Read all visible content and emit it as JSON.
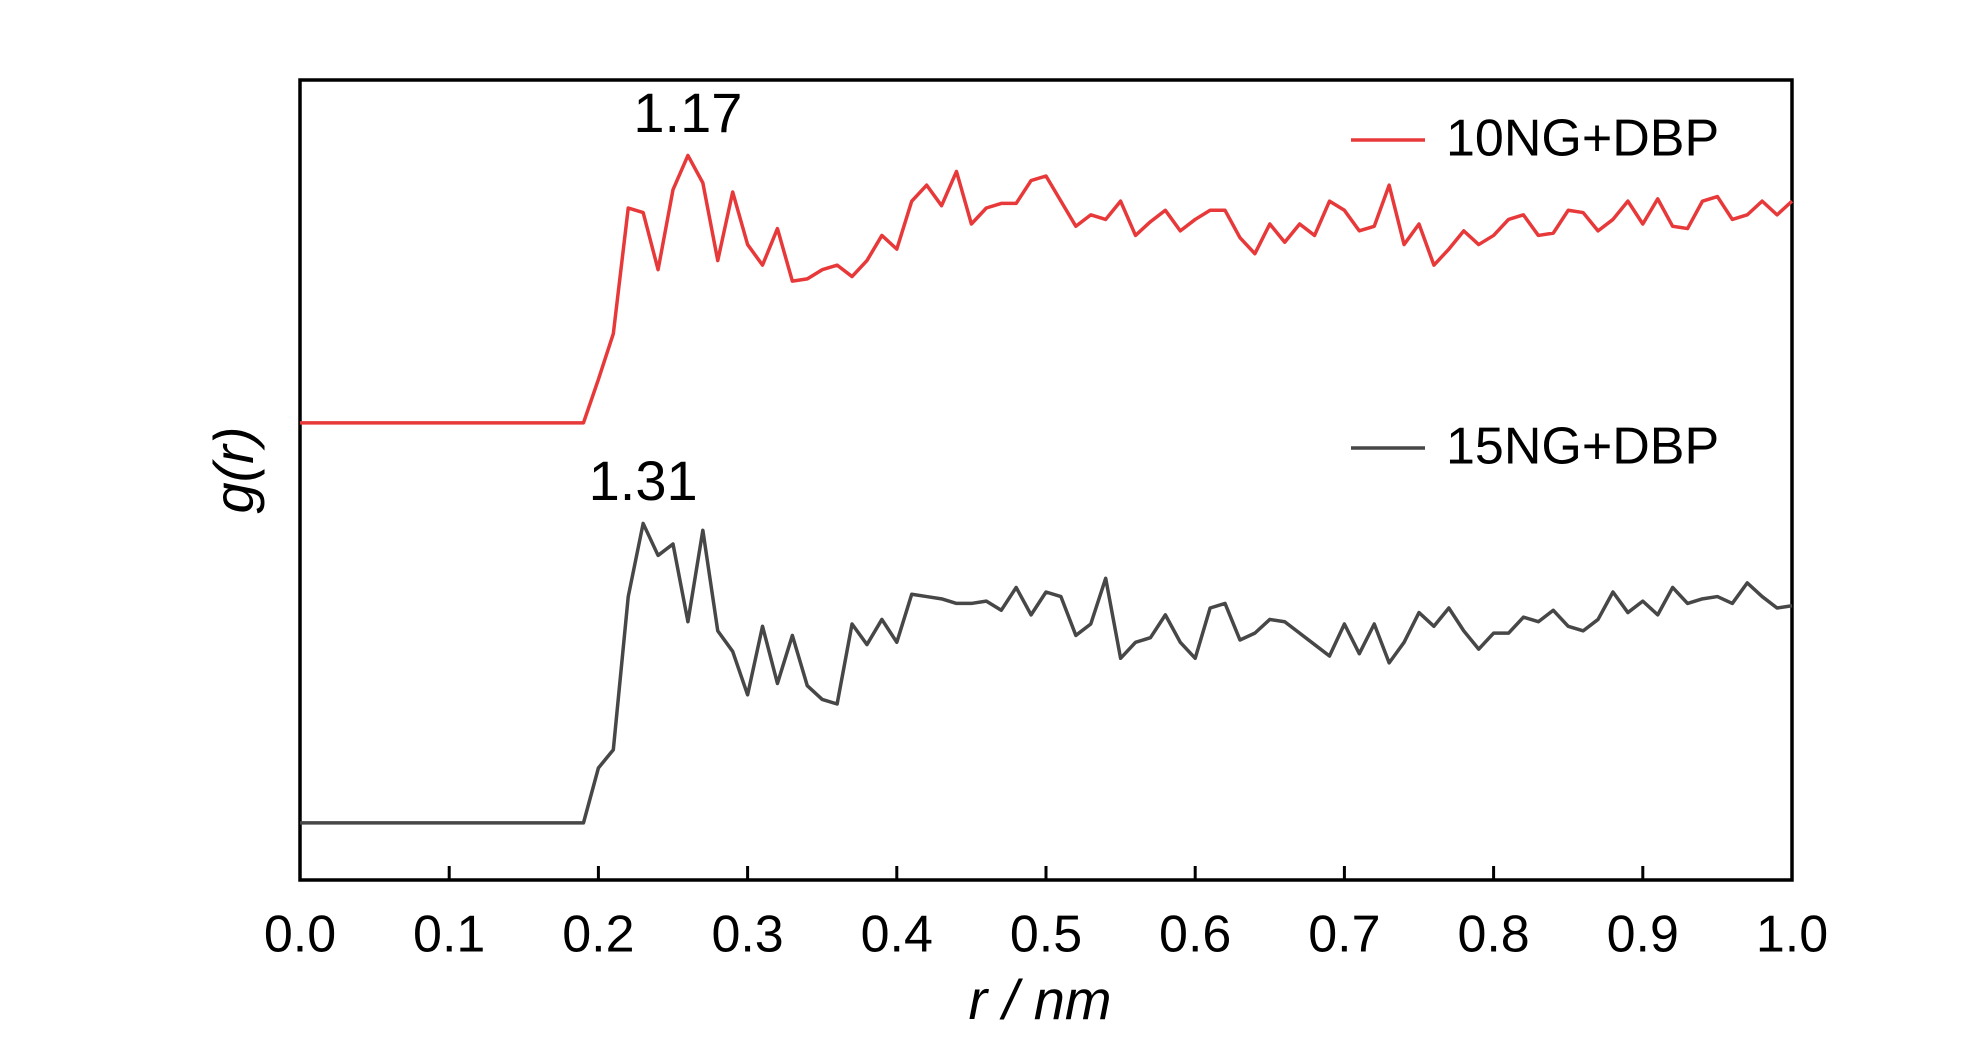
{
  "chart_data": {
    "type": "line",
    "xlabel": "r / nm",
    "ylabel": "g(r)",
    "annotations": [
      "1.17",
      "1.31"
    ],
    "legend": "upper right",
    "grid": false,
    "x": [
      0,
      0.19,
      0.2,
      0.21,
      0.22,
      0.23,
      0.24,
      0.25,
      0.26,
      0.27,
      0.28,
      0.29,
      0.3,
      0.31,
      0.32,
      0.33,
      0.34,
      0.35,
      0.36,
      0.37,
      0.38,
      0.39,
      0.4,
      0.41,
      0.42,
      0.43,
      0.44,
      0.45,
      0.46,
      0.47,
      0.48,
      0.49,
      0.5,
      0.51,
      0.52,
      0.53,
      0.54,
      0.55,
      0.56,
      0.57,
      0.58,
      0.59,
      0.6,
      0.61,
      0.62,
      0.63,
      0.64,
      0.65,
      0.66,
      0.67,
      0.68,
      0.69,
      0.7,
      0.71,
      0.72,
      0.73,
      0.74,
      0.75,
      0.76,
      0.77,
      0.78,
      0.79,
      0.8,
      0.81,
      0.82,
      0.83,
      0.84,
      0.85,
      0.86,
      0.87,
      0.88,
      0.89,
      0.9,
      0.91,
      0.92,
      0.93,
      0.94,
      0.95,
      0.96,
      0.97,
      0.98,
      0.99,
      1.0
    ],
    "series": [
      {
        "name": "10NG+DBP",
        "color": "#e8393a",
        "values": [
          1.75,
          1.75,
          1.94,
          2.14,
          2.69,
          2.67,
          2.42,
          2.77,
          2.92,
          2.8,
          2.46,
          2.76,
          2.53,
          2.44,
          2.6,
          2.37,
          2.38,
          2.42,
          2.44,
          2.39,
          2.46,
          2.57,
          2.51,
          2.72,
          2.79,
          2.7,
          2.85,
          2.62,
          2.69,
          2.71,
          2.71,
          2.81,
          2.83,
          2.72,
          2.61,
          2.66,
          2.64,
          2.72,
          2.57,
          2.63,
          2.68,
          2.59,
          2.64,
          2.68,
          2.68,
          2.56,
          2.49,
          2.62,
          2.54,
          2.62,
          2.57,
          2.72,
          2.68,
          2.59,
          2.61,
          2.79,
          2.53,
          2.62,
          2.44,
          2.51,
          2.59,
          2.53,
          2.57,
          2.64,
          2.66,
          2.57,
          2.58,
          2.68,
          2.67,
          2.59,
          2.64,
          2.72,
          2.62,
          2.73,
          2.61,
          2.6,
          2.72,
          2.74,
          2.64,
          2.66,
          2.72,
          2.66,
          2.72
        ]
      },
      {
        "name": "15NG+DBP",
        "color": "#474747",
        "values": [
          0,
          0,
          0.24,
          0.32,
          0.99,
          1.31,
          1.17,
          1.22,
          0.88,
          1.28,
          0.84,
          0.75,
          0.56,
          0.86,
          0.61,
          0.82,
          0.6,
          0.54,
          0.52,
          0.87,
          0.78,
          0.89,
          0.79,
          1.0,
          0.99,
          0.98,
          0.96,
          0.96,
          0.97,
          0.93,
          1.03,
          0.91,
          1.01,
          0.99,
          0.82,
          0.87,
          1.07,
          0.72,
          0.79,
          0.81,
          0.91,
          0.79,
          0.72,
          0.94,
          0.96,
          0.8,
          0.83,
          0.89,
          0.88,
          0.83,
          0.78,
          0.73,
          0.87,
          0.74,
          0.87,
          0.7,
          0.79,
          0.92,
          0.86,
          0.94,
          0.84,
          0.76,
          0.83,
          0.83,
          0.9,
          0.88,
          0.93,
          0.86,
          0.84,
          0.89,
          1.01,
          0.92,
          0.97,
          0.91,
          1.03,
          0.96,
          0.98,
          0.99,
          0.96,
          1.05,
          0.99,
          0.94,
          0.95
        ]
      }
    ],
    "xlim": [
      0,
      1
    ],
    "xticks": [
      {
        "value": 0,
        "label": "0.0"
      },
      0.1,
      0.2,
      0.3,
      0.4,
      0.5,
      0.6,
      0.7,
      0.8,
      0.9,
      {
        "value": 1,
        "label": "1.0"
      }
    ],
    "ylim": [
      -0.25,
      3.25
    ]
  }
}
